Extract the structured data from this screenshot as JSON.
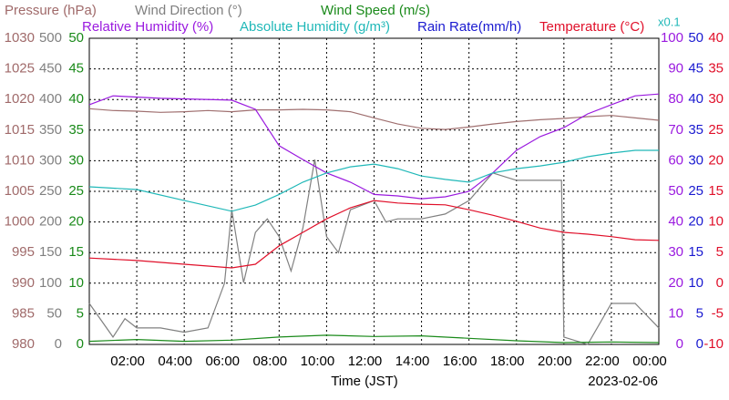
{
  "chart_data": {
    "type": "line",
    "headers": [
      "Pressure (hPa)",
      "Wind Direction (°)",
      "Wind Speed (m/s)",
      "Relative Humidity (%)",
      "Absolute Humidity (g/m³)",
      "Rain Rate(mm/h)",
      "Temperature (°C)"
    ],
    "scale_note": "x0.1",
    "xlabel": "Time (JST)",
    "date": "2023-02-06",
    "grid": true,
    "xlim": [
      0,
      24
    ],
    "xticks": [
      {
        "value": 2,
        "label": "02:00"
      },
      {
        "value": 4,
        "label": "04:00"
      },
      {
        "value": 6,
        "label": "06:00"
      },
      {
        "value": 8,
        "label": "08:00"
      },
      {
        "value": 10,
        "label": "10:00"
      },
      {
        "value": 12,
        "label": "12:00"
      },
      {
        "value": 14,
        "label": "14:00"
      },
      {
        "value": 16,
        "label": "16:00"
      },
      {
        "value": 18,
        "label": "18:00"
      },
      {
        "value": 20,
        "label": "20:00"
      },
      {
        "value": 22,
        "label": "22:00"
      },
      {
        "value": 24,
        "label": "00:00"
      }
    ],
    "axes": [
      {
        "side": "left",
        "color": "#a06a6a",
        "ylim": [
          980,
          1030
        ],
        "yticks": [
          980,
          985,
          990,
          995,
          1000,
          1005,
          1010,
          1015,
          1020,
          1025,
          1030
        ]
      },
      {
        "side": "left",
        "color": "#808080",
        "ylim": [
          0,
          500
        ],
        "yticks": [
          0,
          50,
          100,
          150,
          200,
          250,
          300,
          350,
          400,
          450,
          500
        ]
      },
      {
        "side": "left",
        "color": "#1a8a1a",
        "ylim": [
          0,
          50
        ],
        "yticks": [
          0,
          5,
          10,
          15,
          20,
          25,
          30,
          35,
          40,
          45,
          50
        ]
      },
      {
        "side": "right",
        "color": "#9a1adf",
        "ylim": [
          0,
          100
        ],
        "yticks": [
          0,
          10,
          20,
          30,
          40,
          50,
          60,
          70,
          80,
          90,
          100
        ]
      },
      {
        "side": "right",
        "color": "#1a1ad0",
        "ylim": [
          0,
          50
        ],
        "yticks": [
          0,
          5,
          10,
          15,
          20,
          25,
          30,
          35,
          40,
          45,
          50
        ]
      },
      {
        "side": "right",
        "color": "#e0102a",
        "ylim": [
          -10,
          40
        ],
        "yticks": [
          -10,
          -5,
          0,
          5,
          10,
          15,
          20,
          25,
          30,
          35,
          40
        ]
      }
    ],
    "series": [
      {
        "name": "Pressure (hPa)",
        "color": "#a07070",
        "axis": 0,
        "x": [
          0,
          1,
          2,
          3,
          4,
          5,
          6,
          7,
          8,
          9,
          10,
          11,
          12,
          13,
          14,
          15,
          16,
          17,
          18,
          19,
          20,
          21,
          22,
          23,
          24
        ],
        "values": [
          1018.5,
          1018.2,
          1018.1,
          1017.9,
          1018.0,
          1018.2,
          1018.0,
          1018.3,
          1018.3,
          1018.4,
          1018.3,
          1018.0,
          1017.0,
          1016.0,
          1015.3,
          1015.1,
          1015.5,
          1016.0,
          1016.4,
          1016.7,
          1016.9,
          1017.2,
          1017.4,
          1017.0,
          1016.6
        ]
      },
      {
        "name": "Wind Direction (°)",
        "color": "#808080",
        "axis": 1,
        "x": [
          0,
          1,
          1.5,
          2,
          3,
          4,
          5,
          5.7,
          6,
          6.5,
          7,
          7.5,
          8,
          8.5,
          9,
          9.5,
          10,
          10.5,
          11,
          12,
          12.5,
          13,
          14,
          15,
          16,
          17,
          18,
          19,
          19.9,
          20,
          21,
          22,
          23,
          24
        ],
        "values": [
          67,
          12,
          42,
          27,
          27,
          20,
          27,
          100,
          220,
          101,
          183,
          205,
          176,
          120,
          190,
          302,
          176,
          150,
          220,
          235,
          200,
          205,
          205,
          213,
          235,
          280,
          268,
          268,
          268,
          12,
          0,
          67,
          67,
          27
        ]
      },
      {
        "name": "Wind Speed (m/s)",
        "color": "#1a8a1a",
        "axis": 2,
        "x": [
          0,
          2,
          4,
          6,
          8,
          10,
          12,
          14,
          16,
          18,
          20,
          22,
          24
        ],
        "values": [
          0.5,
          0.8,
          0.5,
          0.7,
          1.2,
          1.5,
          1.3,
          1.4,
          1.0,
          0.6,
          0.3,
          0.4,
          0.3
        ]
      },
      {
        "name": "Relative Humidity (%)",
        "color": "#9a1adf",
        "axis": 3,
        "x": [
          0,
          1,
          3,
          6,
          7,
          8,
          9,
          10,
          11,
          12,
          13,
          14,
          15,
          16,
          17,
          18,
          19,
          20,
          21,
          22,
          23,
          24
        ],
        "values": [
          78.3,
          81.2,
          80.4,
          79.8,
          76.8,
          64.9,
          60.4,
          56,
          53,
          49,
          48.5,
          47.6,
          48.2,
          50,
          56,
          63.4,
          67.9,
          70.8,
          75.3,
          78.3,
          81.2,
          81.8
        ]
      },
      {
        "name": "Absolute Humidity (g/m³)",
        "color": "#20b8b8",
        "axis": 3,
        "x": [
          0,
          2,
          4,
          6,
          7,
          8,
          9,
          10,
          11,
          12,
          13,
          14,
          15,
          16,
          17,
          18,
          19,
          20,
          21,
          22,
          23,
          24
        ],
        "values": [
          51.5,
          50.6,
          47,
          43.5,
          45.5,
          49,
          53,
          56,
          58,
          58.9,
          57.4,
          55,
          53.9,
          53,
          56,
          57.4,
          58.3,
          59.5,
          61.3,
          62.5,
          63.4,
          63.4
        ]
      },
      {
        "name": "Temperature (°C)",
        "color": "#e0102a",
        "axis": 5,
        "x": [
          0,
          2,
          4,
          6,
          7,
          8,
          9,
          10,
          11,
          12,
          13,
          14,
          15,
          16,
          17,
          18,
          19,
          20,
          21,
          22,
          23,
          24
        ],
        "values": [
          4.1,
          3.7,
          3.1,
          2.5,
          3.1,
          6.1,
          8.3,
          10.5,
          12.3,
          13.5,
          13.1,
          12.9,
          12.8,
          12.0,
          11.1,
          10.1,
          9.0,
          8.3,
          8.0,
          7.6,
          7.1,
          7.0
        ]
      }
    ]
  }
}
